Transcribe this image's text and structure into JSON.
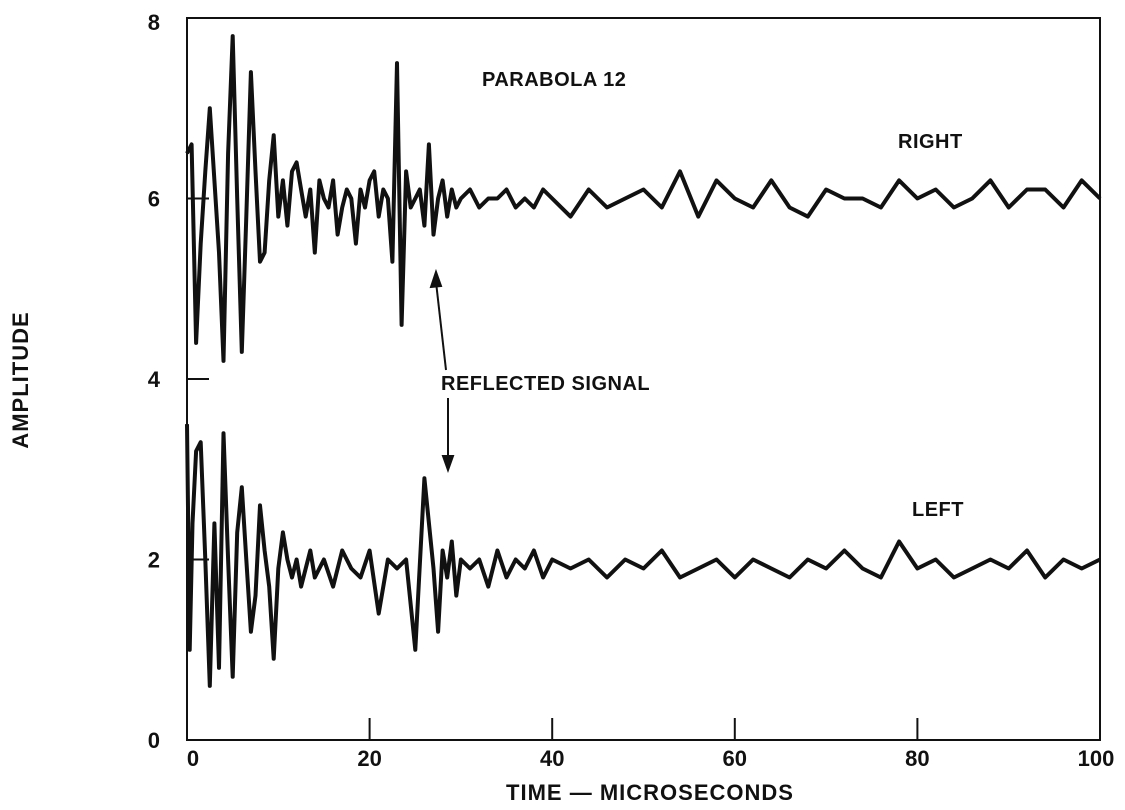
{
  "chart_data": {
    "type": "line",
    "title": "",
    "xlabel": "TIME — MICROSECONDS",
    "ylabel": "AMPLITUDE",
    "xlim": [
      0,
      100
    ],
    "ylim": [
      0,
      8
    ],
    "xticks": [
      "0",
      "20",
      "40",
      "60",
      "80",
      "100"
    ],
    "yticks": [
      "0",
      "2",
      "4",
      "6",
      "8"
    ],
    "grid": false,
    "series": [
      {
        "name": "RIGHT",
        "x": [
          0,
          0.5,
          1,
          1.5,
          2,
          2.5,
          3,
          3.5,
          4,
          4.5,
          5,
          5.5,
          6,
          6.5,
          7,
          7.5,
          8,
          8.5,
          9,
          9.5,
          10,
          10.5,
          11,
          11.5,
          12,
          12.5,
          13,
          13.5,
          14,
          14.5,
          15,
          15.5,
          16,
          16.5,
          17,
          17.5,
          18,
          18.5,
          19,
          19.5,
          20,
          20.5,
          21,
          21.5,
          22,
          22.5,
          23,
          23.5,
          24,
          24.5,
          25,
          25.5,
          26,
          26.5,
          27,
          27.5,
          28,
          28.5,
          29,
          29.5,
          30,
          31,
          32,
          33,
          34,
          35,
          36,
          37,
          38,
          39,
          40,
          42,
          44,
          46,
          48,
          50,
          52,
          54,
          56,
          58,
          60,
          62,
          64,
          66,
          68,
          70,
          72,
          74,
          76,
          78,
          80,
          82,
          84,
          86,
          88,
          90,
          92,
          94,
          96,
          98,
          100
        ],
        "y": [
          6.5,
          6.6,
          4.4,
          5.5,
          6.3,
          7.0,
          6.2,
          5.4,
          4.2,
          6.5,
          7.8,
          6.0,
          4.3,
          5.8,
          7.4,
          6.3,
          5.3,
          5.4,
          6.2,
          6.7,
          5.8,
          6.2,
          5.7,
          6.3,
          6.4,
          6.1,
          5.8,
          6.1,
          5.4,
          6.2,
          6.0,
          5.9,
          6.2,
          5.6,
          5.9,
          6.1,
          6.0,
          5.5,
          6.1,
          5.9,
          6.2,
          6.3,
          5.8,
          6.1,
          6.0,
          5.3,
          7.5,
          4.6,
          6.3,
          5.9,
          6.0,
          6.1,
          5.7,
          6.6,
          5.6,
          6.0,
          6.2,
          5.8,
          6.1,
          5.9,
          6.0,
          6.1,
          5.9,
          6.0,
          6.0,
          6.1,
          5.9,
          6.0,
          5.9,
          6.1,
          6.0,
          5.8,
          6.1,
          5.9,
          6.0,
          6.1,
          5.9,
          6.3,
          5.8,
          6.2,
          6.0,
          5.9,
          6.2,
          5.9,
          5.8,
          6.1,
          6.0,
          6.0,
          5.9,
          6.2,
          6.0,
          6.1,
          5.9,
          6.0,
          6.2,
          5.9,
          6.1,
          6.1,
          5.9,
          6.2,
          6.0
        ]
      },
      {
        "name": "LEFT",
        "x": [
          0,
          0.3,
          0.6,
          1,
          1.5,
          2,
          2.5,
          3,
          3.5,
          4,
          4.5,
          5,
          5.5,
          6,
          6.5,
          7,
          7.5,
          8,
          8.5,
          9,
          9.5,
          10,
          10.5,
          11,
          11.5,
          12,
          12.5,
          13,
          13.5,
          14,
          15,
          16,
          17,
          18,
          19,
          20,
          21,
          22,
          23,
          24,
          25,
          26,
          27,
          27.5,
          28,
          28.5,
          29,
          29.5,
          30,
          31,
          32,
          33,
          34,
          35,
          36,
          37,
          38,
          39,
          40,
          42,
          44,
          46,
          48,
          50,
          52,
          54,
          56,
          58,
          60,
          62,
          64,
          66,
          68,
          70,
          72,
          74,
          76,
          78,
          80,
          82,
          84,
          86,
          88,
          90,
          92,
          94,
          96,
          98,
          100
        ],
        "y": [
          3.5,
          1.0,
          2.4,
          3.2,
          3.3,
          2.0,
          0.6,
          2.4,
          0.8,
          3.4,
          2.0,
          0.7,
          2.3,
          2.8,
          2.0,
          1.2,
          1.6,
          2.6,
          2.1,
          1.7,
          0.9,
          1.9,
          2.3,
          2.0,
          1.8,
          2.0,
          1.7,
          1.9,
          2.1,
          1.8,
          2.0,
          1.7,
          2.1,
          1.9,
          1.8,
          2.1,
          1.4,
          2.0,
          1.9,
          2.0,
          1.0,
          2.9,
          1.9,
          1.2,
          2.1,
          1.8,
          2.2,
          1.6,
          2.0,
          1.9,
          2.0,
          1.7,
          2.1,
          1.8,
          2.0,
          1.9,
          2.1,
          1.8,
          2.0,
          1.9,
          2.0,
          1.8,
          2.0,
          1.9,
          2.1,
          1.8,
          1.9,
          2.0,
          1.8,
          2.0,
          1.9,
          1.8,
          2.0,
          1.9,
          2.1,
          1.9,
          1.8,
          2.2,
          1.9,
          2.0,
          1.8,
          1.9,
          2.0,
          1.9,
          2.1,
          1.8,
          2.0,
          1.9,
          2.0
        ]
      }
    ],
    "annotations": [
      {
        "text": "PARABOLA 12"
      },
      {
        "text": "RIGHT"
      },
      {
        "text": "LEFT"
      },
      {
        "text": "REFLECTED SIGNAL"
      }
    ]
  }
}
